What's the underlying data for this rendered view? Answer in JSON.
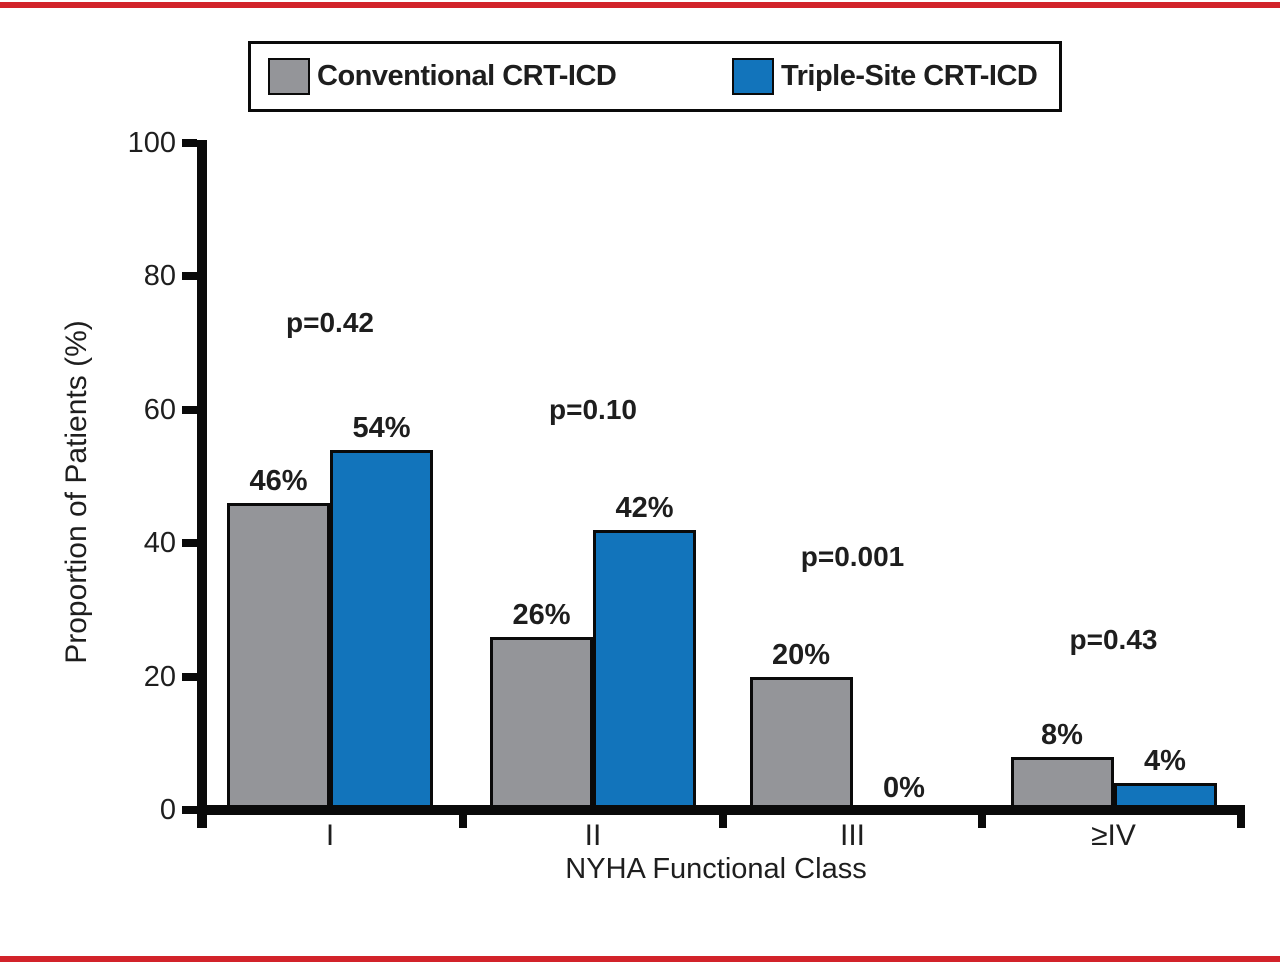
{
  "page": {
    "rule_color": "#d2232a",
    "background": "#ffffff"
  },
  "chart_data": {
    "type": "bar",
    "categories": [
      "I",
      "II",
      "III",
      "≥IV"
    ],
    "series": [
      {
        "name": "Conventional CRT-ICD",
        "color": "#949599",
        "values": [
          46,
          26,
          20,
          8
        ]
      },
      {
        "name": "Triple-Site CRT-ICD",
        "color": "#1274bb",
        "values": [
          54,
          42,
          0,
          4
        ]
      }
    ],
    "bar_labels": [
      [
        "46%",
        "54%"
      ],
      [
        "26%",
        "42%"
      ],
      [
        "20%",
        "0%"
      ],
      [
        "8%",
        "4%"
      ]
    ],
    "p_values": [
      "p=0.42",
      "p=0.10",
      "p=0.001",
      "p=0.43"
    ],
    "p_label_heights_pct": [
      73,
      60,
      38,
      25.5
    ],
    "xlabel": "NYHA Functional Class",
    "ylabel": "Proportion of Patients (%)",
    "ylim": [
      0,
      100
    ],
    "yticks": [
      0,
      20,
      40,
      60,
      80,
      100
    ],
    "grid": false,
    "legend_position": "top",
    "bar_border_color": "#0a0a0a",
    "zero_value_bars_hidden": true
  }
}
